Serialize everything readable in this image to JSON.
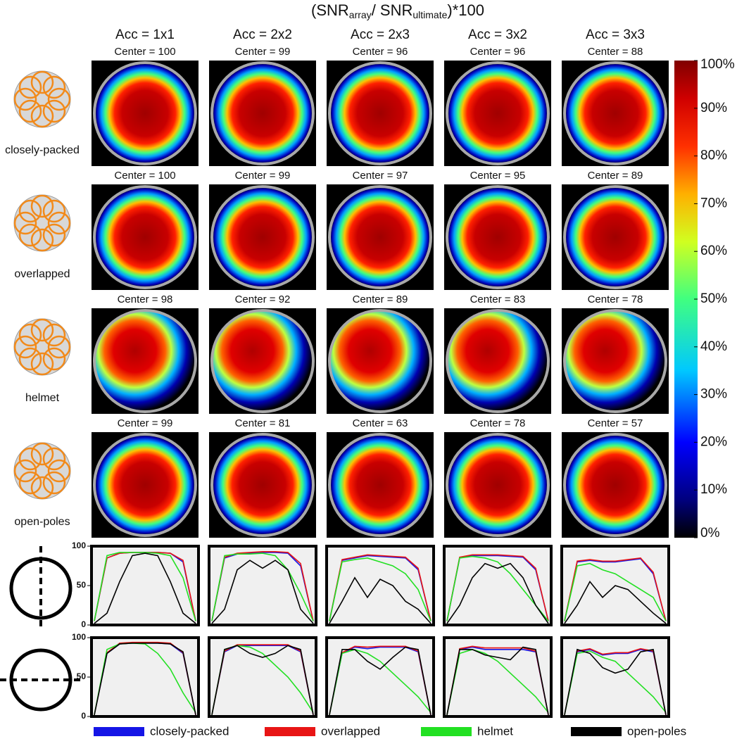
{
  "title": {
    "lead": "(SNR",
    "sub1": "array",
    "mid": "/ SNR",
    "sub2": "ultimate",
    "tail": ")*100"
  },
  "columns": [
    "Acc = 1x1",
    "Acc = 2x2",
    "Acc = 2x3",
    "Acc = 3x2",
    "Acc = 3x3"
  ],
  "center_prefix": "Center = ",
  "rows": [
    {
      "label": "closely-packed",
      "centers": [
        100,
        99,
        96,
        96,
        88
      ]
    },
    {
      "label": "overlapped",
      "centers": [
        100,
        99,
        97,
        95,
        89
      ]
    },
    {
      "label": "helmet",
      "centers": [
        98,
        92,
        89,
        83,
        78
      ]
    },
    {
      "label": "open-poles",
      "centers": [
        99,
        81,
        63,
        78,
        57
      ]
    }
  ],
  "colorbar": {
    "ylim": [
      0,
      100
    ],
    "ticks": [
      {
        "value": 0,
        "label": "0%"
      },
      {
        "value": 10,
        "label": "10%"
      },
      {
        "value": 20,
        "label": "20%"
      },
      {
        "value": 30,
        "label": "30%"
      },
      {
        "value": 40,
        "label": "40%"
      },
      {
        "value": 50,
        "label": "50%"
      },
      {
        "value": 60,
        "label": "60%"
      },
      {
        "value": 70,
        "label": "70%"
      },
      {
        "value": 80,
        "label": "80%"
      },
      {
        "value": 90,
        "label": "90%"
      },
      {
        "value": 100,
        "label": "100%"
      }
    ]
  },
  "chart_data": {
    "type": "line",
    "ylim": [
      0,
      100
    ],
    "yticks": [
      0,
      50,
      100
    ],
    "legend": [
      {
        "name": "closely-packed",
        "color": "#1515e6"
      },
      {
        "name": "overlapped",
        "color": "#e81515"
      },
      {
        "name": "helmet",
        "color": "#22e022"
      },
      {
        "name": "open-poles",
        "color": "#000000"
      }
    ],
    "profiles": [
      {
        "panels": [
          {
            "series": [
              [
                5,
                85,
                91,
                92,
                92,
                92,
                91,
                80,
                5
              ],
              [
                5,
                85,
                91,
                92,
                92,
                92,
                91,
                82,
                5
              ],
              [
                5,
                88,
                92,
                92,
                92,
                91,
                88,
                60,
                5
              ],
              [
                2,
                15,
                55,
                88,
                91,
                88,
                55,
                15,
                2
              ]
            ]
          },
          {
            "series": [
              [
                5,
                85,
                90,
                91,
                92,
                92,
                91,
                75,
                5
              ],
              [
                5,
                86,
                91,
                92,
                93,
                93,
                92,
                78,
                5
              ],
              [
                5,
                88,
                90,
                90,
                91,
                88,
                70,
                40,
                5
              ],
              [
                2,
                20,
                70,
                82,
                72,
                82,
                70,
                20,
                2
              ]
            ]
          },
          {
            "series": [
              [
                5,
                82,
                85,
                88,
                87,
                86,
                85,
                70,
                5
              ],
              [
                5,
                83,
                86,
                89,
                88,
                87,
                86,
                72,
                5
              ],
              [
                5,
                80,
                83,
                85,
                80,
                75,
                65,
                45,
                5
              ],
              [
                2,
                30,
                60,
                35,
                58,
                50,
                30,
                20,
                2
              ]
            ]
          },
          {
            "series": [
              [
                5,
                85,
                88,
                88,
                88,
                87,
                86,
                70,
                5
              ],
              [
                5,
                86,
                89,
                89,
                89,
                88,
                87,
                72,
                5
              ],
              [
                5,
                85,
                87,
                85,
                80,
                65,
                45,
                25,
                5
              ],
              [
                2,
                25,
                60,
                78,
                72,
                78,
                60,
                25,
                2
              ]
            ]
          },
          {
            "series": [
              [
                5,
                80,
                82,
                80,
                80,
                82,
                84,
                65,
                5
              ],
              [
                5,
                81,
                83,
                81,
                81,
                83,
                85,
                67,
                5
              ],
              [
                5,
                75,
                78,
                70,
                65,
                55,
                45,
                35,
                5
              ],
              [
                2,
                25,
                55,
                35,
                50,
                45,
                30,
                15,
                2
              ]
            ]
          }
        ]
      },
      {
        "panels": [
          {
            "series": [
              [
                2,
                80,
                92,
                93,
                93,
                93,
                92,
                80,
                2
              ],
              [
                2,
                81,
                93,
                94,
                94,
                94,
                93,
                81,
                2
              ],
              [
                2,
                85,
                92,
                93,
                92,
                80,
                60,
                30,
                5
              ],
              [
                2,
                80,
                92,
                93,
                93,
                93,
                92,
                82,
                2
              ]
            ]
          },
          {
            "series": [
              [
                2,
                82,
                90,
                90,
                90,
                90,
                90,
                82,
                2
              ],
              [
                2,
                83,
                91,
                91,
                91,
                91,
                91,
                83,
                2
              ],
              [
                2,
                85,
                90,
                88,
                80,
                65,
                50,
                30,
                5
              ],
              [
                2,
                85,
                90,
                80,
                75,
                80,
                90,
                85,
                2
              ]
            ]
          },
          {
            "series": [
              [
                2,
                80,
                88,
                86,
                88,
                88,
                88,
                82,
                2
              ],
              [
                2,
                81,
                89,
                88,
                89,
                89,
                89,
                83,
                2
              ],
              [
                2,
                80,
                85,
                80,
                70,
                55,
                40,
                25,
                5
              ],
              [
                2,
                85,
                85,
                70,
                60,
                75,
                88,
                85,
                2
              ]
            ]
          },
          {
            "series": [
              [
                2,
                85,
                88,
                85,
                85,
                85,
                85,
                82,
                2
              ],
              [
                2,
                86,
                89,
                87,
                87,
                87,
                87,
                83,
                2
              ],
              [
                2,
                80,
                85,
                80,
                70,
                55,
                40,
                25,
                5
              ],
              [
                2,
                85,
                85,
                78,
                75,
                72,
                88,
                85,
                2
              ]
            ]
          },
          {
            "series": [
              [
                2,
                82,
                85,
                78,
                80,
                80,
                85,
                82,
                2
              ],
              [
                2,
                83,
                86,
                79,
                81,
                81,
                86,
                83,
                2
              ],
              [
                2,
                80,
                83,
                75,
                70,
                55,
                40,
                25,
                5
              ],
              [
                2,
                85,
                80,
                62,
                55,
                60,
                82,
                85,
                2
              ]
            ]
          }
        ]
      }
    ]
  }
}
